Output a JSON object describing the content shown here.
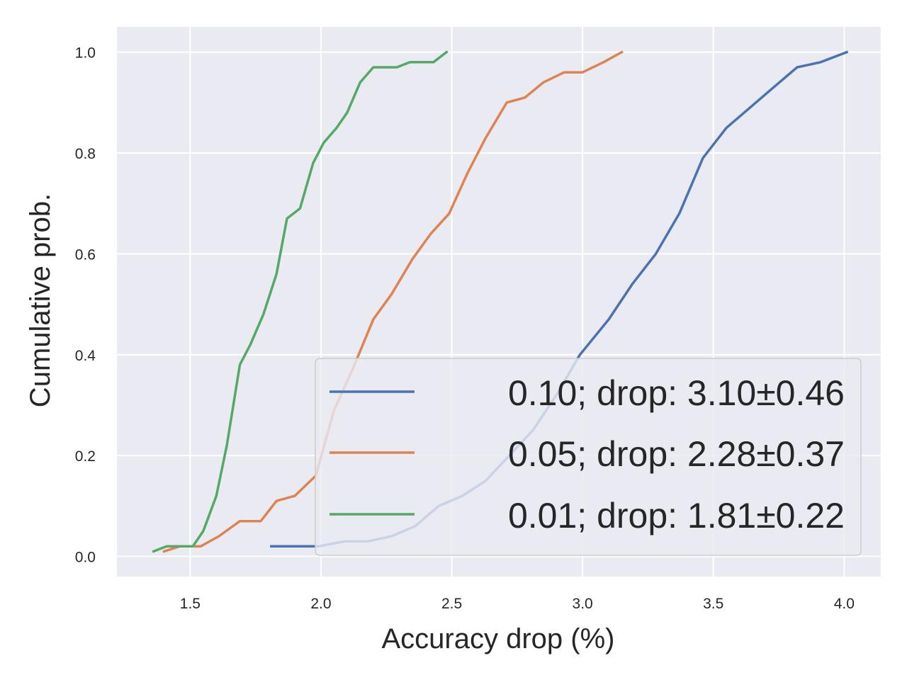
{
  "chart_data": {
    "type": "line",
    "xlabel": "Accuracy drop (%)",
    "ylabel": "Cumulative prob.",
    "xlim": [
      1.22,
      4.14
    ],
    "ylim": [
      -0.04,
      1.05
    ],
    "xticks": [
      1.5,
      2.0,
      2.5,
      3.0,
      3.5,
      4.0
    ],
    "xtick_labels": [
      "1.5",
      "2.0",
      "2.5",
      "3.0",
      "3.5",
      "4.0"
    ],
    "yticks": [
      0.0,
      0.2,
      0.4,
      0.6,
      0.8,
      1.0
    ],
    "ytick_labels": [
      "0.0",
      "0.2",
      "0.4",
      "0.6",
      "0.8",
      "1.0"
    ],
    "grid": true,
    "background": "#EAEAF2",
    "legend_position": "lower-right",
    "series": [
      {
        "name": "0.10; drop: 3.10±0.46",
        "color": "#4C72B0",
        "x": [
          1.81,
          1.99,
          2.09,
          2.18,
          2.27,
          2.36,
          2.45,
          2.54,
          2.63,
          2.72,
          2.81,
          2.9,
          2.99,
          3.1,
          3.19,
          3.28,
          3.37,
          3.46,
          3.55,
          3.64,
          3.73,
          3.82,
          3.91,
          4.01
        ],
        "y": [
          0.02,
          0.02,
          0.03,
          0.03,
          0.04,
          0.06,
          0.1,
          0.12,
          0.15,
          0.2,
          0.25,
          0.32,
          0.4,
          0.47,
          0.54,
          0.6,
          0.68,
          0.79,
          0.85,
          0.89,
          0.93,
          0.97,
          0.98,
          1.0
        ]
      },
      {
        "name": "0.05; drop: 2.28±0.37",
        "color": "#DD8452",
        "x": [
          1.4,
          1.46,
          1.54,
          1.61,
          1.69,
          1.77,
          1.83,
          1.9,
          1.98,
          2.05,
          2.12,
          2.2,
          2.27,
          2.35,
          2.42,
          2.49,
          2.56,
          2.63,
          2.71,
          2.78,
          2.85,
          2.93,
          3.0,
          3.08,
          3.15
        ],
        "y": [
          0.01,
          0.02,
          0.02,
          0.04,
          0.07,
          0.07,
          0.11,
          0.12,
          0.16,
          0.29,
          0.37,
          0.47,
          0.52,
          0.59,
          0.64,
          0.68,
          0.76,
          0.83,
          0.9,
          0.91,
          0.94,
          0.96,
          0.96,
          0.98,
          1.0
        ]
      },
      {
        "name": "0.01; drop: 1.81±0.22",
        "color": "#55A868",
        "x": [
          1.36,
          1.41,
          1.46,
          1.51,
          1.55,
          1.6,
          1.64,
          1.69,
          1.73,
          1.78,
          1.83,
          1.87,
          1.92,
          1.97,
          2.01,
          2.06,
          2.1,
          2.15,
          2.2,
          2.25,
          2.29,
          2.34,
          2.39,
          2.43,
          2.48
        ],
        "y": [
          0.01,
          0.02,
          0.02,
          0.02,
          0.05,
          0.12,
          0.22,
          0.38,
          0.42,
          0.48,
          0.56,
          0.67,
          0.69,
          0.78,
          0.82,
          0.85,
          0.88,
          0.94,
          0.97,
          0.97,
          0.97,
          0.98,
          0.98,
          0.98,
          1.0
        ]
      }
    ]
  }
}
